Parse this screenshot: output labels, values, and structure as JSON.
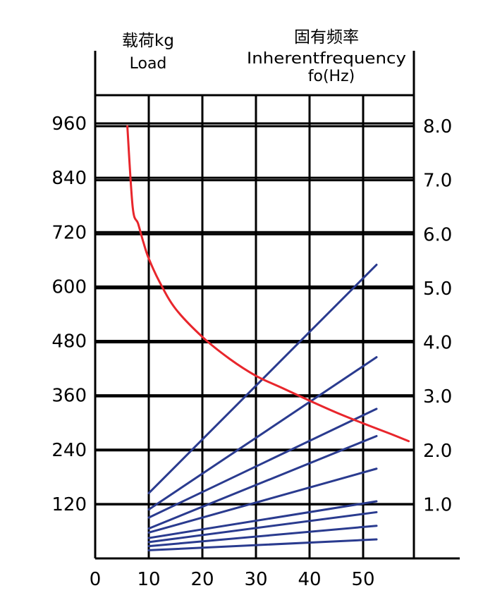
{
  "chart_data": {
    "type": "line",
    "left_header": {
      "zh": "载荷kg",
      "en": "Load"
    },
    "right_header": {
      "zh": "固有频率",
      "en": "Inherentfrequency",
      "sub": "fo(Hz)"
    },
    "x_ticks": [
      "0",
      "10",
      "20",
      "30",
      "40",
      "50"
    ],
    "left_y_ticks": [
      "120",
      "240",
      "360",
      "480",
      "600",
      "720",
      "840",
      "960"
    ],
    "right_y_ticks": [
      "1.0",
      "2.0",
      "3.0",
      "4.0",
      "5.0",
      "6.0",
      "7.0",
      "8.0"
    ],
    "xlim": [
      0,
      60
    ],
    "left_ylim": [
      0,
      1080
    ],
    "right_ylim": [
      0,
      9.0
    ],
    "frequency_curve": {
      "color": "#e8262c",
      "points": [
        [
          6,
          8.0
        ],
        [
          7,
          6.5
        ],
        [
          8,
          6.2
        ],
        [
          9,
          5.85
        ],
        [
          10,
          5.55
        ],
        [
          12,
          5.12
        ],
        [
          15,
          4.62
        ],
        [
          20,
          4.1
        ],
        [
          25,
          3.7
        ],
        [
          30,
          3.38
        ],
        [
          35,
          3.15
        ],
        [
          40,
          2.92
        ],
        [
          45,
          2.7
        ],
        [
          50,
          2.5
        ],
        [
          55,
          2.31
        ],
        [
          58.5,
          2.17
        ]
      ]
    },
    "load_lines": {
      "color": "#2a3b8f",
      "series": [
        {
          "values": [
            [
              10,
              144
            ],
            [
              52.5,
              648
            ]
          ]
        },
        {
          "values": [
            [
              10,
              108
            ],
            [
              52.5,
              444
            ]
          ]
        },
        {
          "values": [
            [
              10,
              90
            ],
            [
              52.5,
              330
            ]
          ]
        },
        {
          "values": [
            [
              10,
              66
            ],
            [
              52.5,
              270
            ]
          ]
        },
        {
          "values": [
            [
              10,
              57
            ],
            [
              52.5,
              198
            ]
          ]
        },
        {
          "values": [
            [
              10,
              45
            ],
            [
              52.5,
              126
            ]
          ]
        },
        {
          "values": [
            [
              10,
              36
            ],
            [
              52.5,
              102
            ]
          ]
        },
        {
          "values": [
            [
              10,
              27
            ],
            [
              52.5,
              72
            ]
          ]
        },
        {
          "values": [
            [
              10,
              18
            ],
            [
              52.5,
              42
            ]
          ]
        }
      ]
    }
  }
}
